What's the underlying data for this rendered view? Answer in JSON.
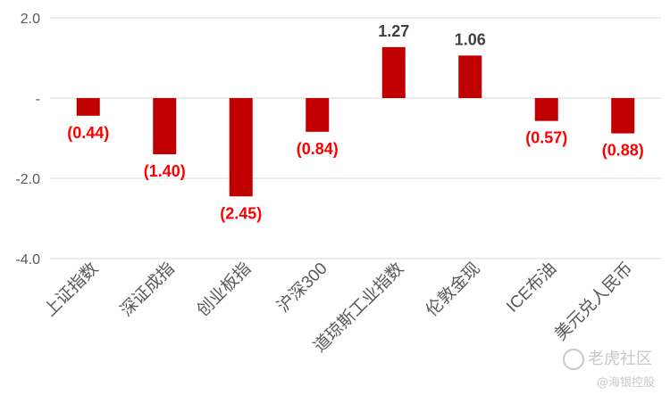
{
  "chart_data": {
    "type": "bar",
    "title": "",
    "xlabel": "",
    "ylabel": "",
    "categories": [
      "上证指数",
      "深证成指",
      "创业板指",
      "沪深300",
      "道琼斯工业指数",
      "伦敦金现",
      "ICE布油",
      "美元兑人民币"
    ],
    "values": [
      -0.44,
      -1.4,
      -2.45,
      -0.84,
      1.27,
      1.06,
      -0.57,
      -0.88
    ],
    "data_labels": [
      "(0.44)",
      "(1.40)",
      "(2.45)",
      "(0.84)",
      "1.27",
      "1.06",
      "(0.57)",
      "(0.88)"
    ],
    "ylim": [
      -4.0,
      2.0
    ],
    "yticks": [
      2.0,
      0,
      -2.0,
      -4.0
    ],
    "ytick_labels": [
      "2.0",
      "-",
      "-2.0",
      "-4.0"
    ],
    "grid": true,
    "legend": "none",
    "colors": {
      "bar": "#c00000",
      "negative_label": "#ff0000",
      "positive_label": "#404040"
    }
  },
  "watermark": {
    "text1": "老虎社区",
    "text2": "@海银控股"
  }
}
